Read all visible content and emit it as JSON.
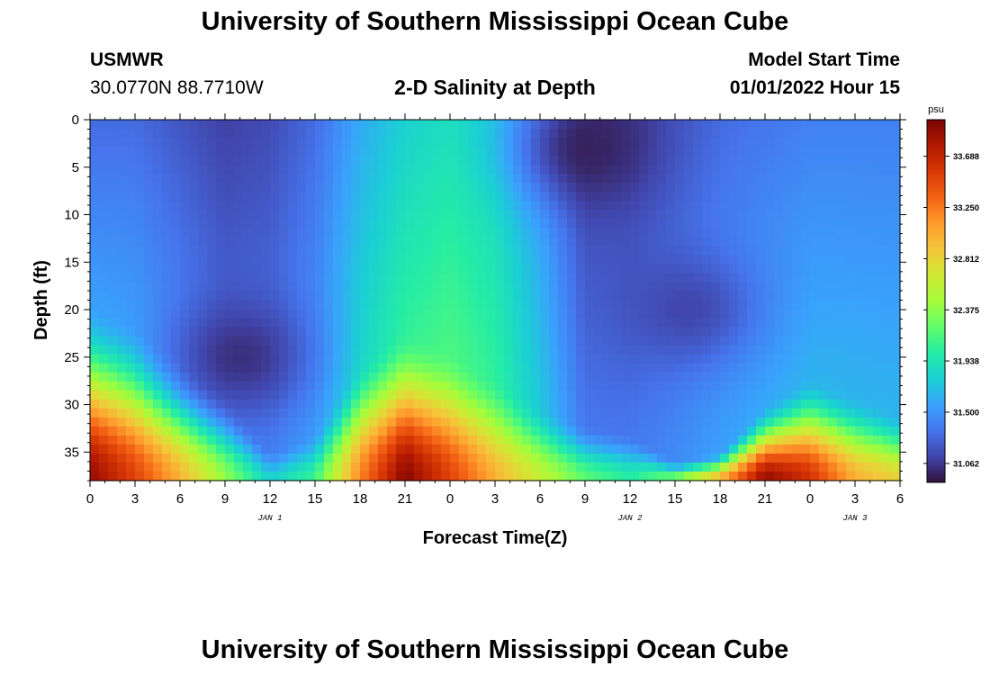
{
  "page": {
    "title_top": "University of Southern Mississippi Ocean Cube",
    "title_bottom": "University of Southern Mississippi Ocean Cube",
    "station_id": "USMWR",
    "station_coords": "30.0770N  88.7710W",
    "subtitle": "2-D Salinity at Depth",
    "model_label": "Model Start Time",
    "model_time": "01/01/2022 Hour 15"
  },
  "chart_data": {
    "type": "heatmap",
    "title": "2-D Salinity at Depth",
    "xlabel": "Forecast Time(Z)",
    "ylabel": "Depth (ft)",
    "x_tick_labels": [
      "0",
      "3",
      "6",
      "9",
      "12",
      "15",
      "18",
      "21",
      "0",
      "3",
      "6",
      "9",
      "12",
      "15",
      "18",
      "21",
      "0",
      "3",
      "6"
    ],
    "x_range_hours": [
      0,
      54
    ],
    "date_labels": [
      {
        "text": "JAN 1",
        "hour": 12
      },
      {
        "text": "JAN 2",
        "hour": 36
      },
      {
        "text": "JAN 3",
        "hour": 51
      }
    ],
    "y_tick_labels": [
      "0",
      "5",
      "10",
      "15",
      "20",
      "25",
      "30",
      "35"
    ],
    "y_range_ft": [
      0,
      38
    ],
    "colorbar": {
      "unit": "psu",
      "min": 30.9,
      "max": 34.0,
      "tick_labels": [
        "33.688",
        "33.250",
        "32.812",
        "32.375",
        "31.938",
        "31.500",
        "31.062"
      ],
      "colors": [
        "#30123b",
        "#4145ab",
        "#4675ed",
        "#39a2fc",
        "#1bcfd4",
        "#24eca6",
        "#61fc6c",
        "#a4fc3b",
        "#d1e834",
        "#f3c63a",
        "#fe9b2d",
        "#f36315",
        "#d93806",
        "#b11901",
        "#7a0402"
      ]
    },
    "salinity_profile_description": "low salinity (31.0-31.6) near surface, high salinity (33-34) near bottom",
    "surface_salinity_by_hour": [
      [
        0,
        31.3
      ],
      [
        3,
        31.3
      ],
      [
        6,
        31.2
      ],
      [
        9,
        31.1
      ],
      [
        12,
        31.15
      ],
      [
        15,
        31.3
      ],
      [
        18,
        31.6
      ],
      [
        21,
        31.8
      ],
      [
        24,
        31.9
      ],
      [
        27,
        31.8
      ],
      [
        30,
        31.5
      ],
      [
        33,
        31.1
      ],
      [
        36,
        31.1
      ],
      [
        39,
        31.2
      ],
      [
        42,
        31.3
      ],
      [
        45,
        31.35
      ],
      [
        48,
        31.4
      ],
      [
        51,
        31.4
      ],
      [
        54,
        31.4
      ]
    ],
    "halocline_top_ft_by_hour": [
      [
        0,
        19
      ],
      [
        3,
        21
      ],
      [
        6,
        25
      ],
      [
        9,
        29
      ],
      [
        12,
        35
      ],
      [
        15,
        33
      ],
      [
        18,
        25
      ],
      [
        21,
        22
      ],
      [
        24,
        24
      ],
      [
        27,
        27
      ],
      [
        30,
        30
      ],
      [
        33,
        32
      ],
      [
        36,
        33
      ],
      [
        39,
        36
      ],
      [
        42,
        35
      ],
      [
        45,
        30
      ],
      [
        48,
        27
      ],
      [
        51,
        29
      ],
      [
        54,
        31
      ]
    ],
    "bottom_salinity_by_hour": [
      [
        0,
        33.9
      ],
      [
        3,
        33.5
      ],
      [
        6,
        33.0
      ],
      [
        9,
        32.4
      ],
      [
        12,
        31.8
      ],
      [
        15,
        32.1
      ],
      [
        18,
        33.2
      ],
      [
        21,
        33.95
      ],
      [
        24,
        33.5
      ],
      [
        27,
        33.0
      ],
      [
        30,
        32.6
      ],
      [
        33,
        32.2
      ],
      [
        36,
        32.0
      ],
      [
        39,
        32.3
      ],
      [
        42,
        33.0
      ],
      [
        45,
        33.9
      ],
      [
        48,
        33.6
      ],
      [
        51,
        33.0
      ],
      [
        54,
        32.8
      ]
    ],
    "lobe_minima": [
      {
        "hour": 10,
        "depth_ft": 25,
        "salinity": 31.0
      },
      {
        "hour": 33,
        "depth_ft": 3,
        "salinity": 30.95
      },
      {
        "hour": 40,
        "depth_ft": 20,
        "salinity": 31.1
      }
    ]
  }
}
